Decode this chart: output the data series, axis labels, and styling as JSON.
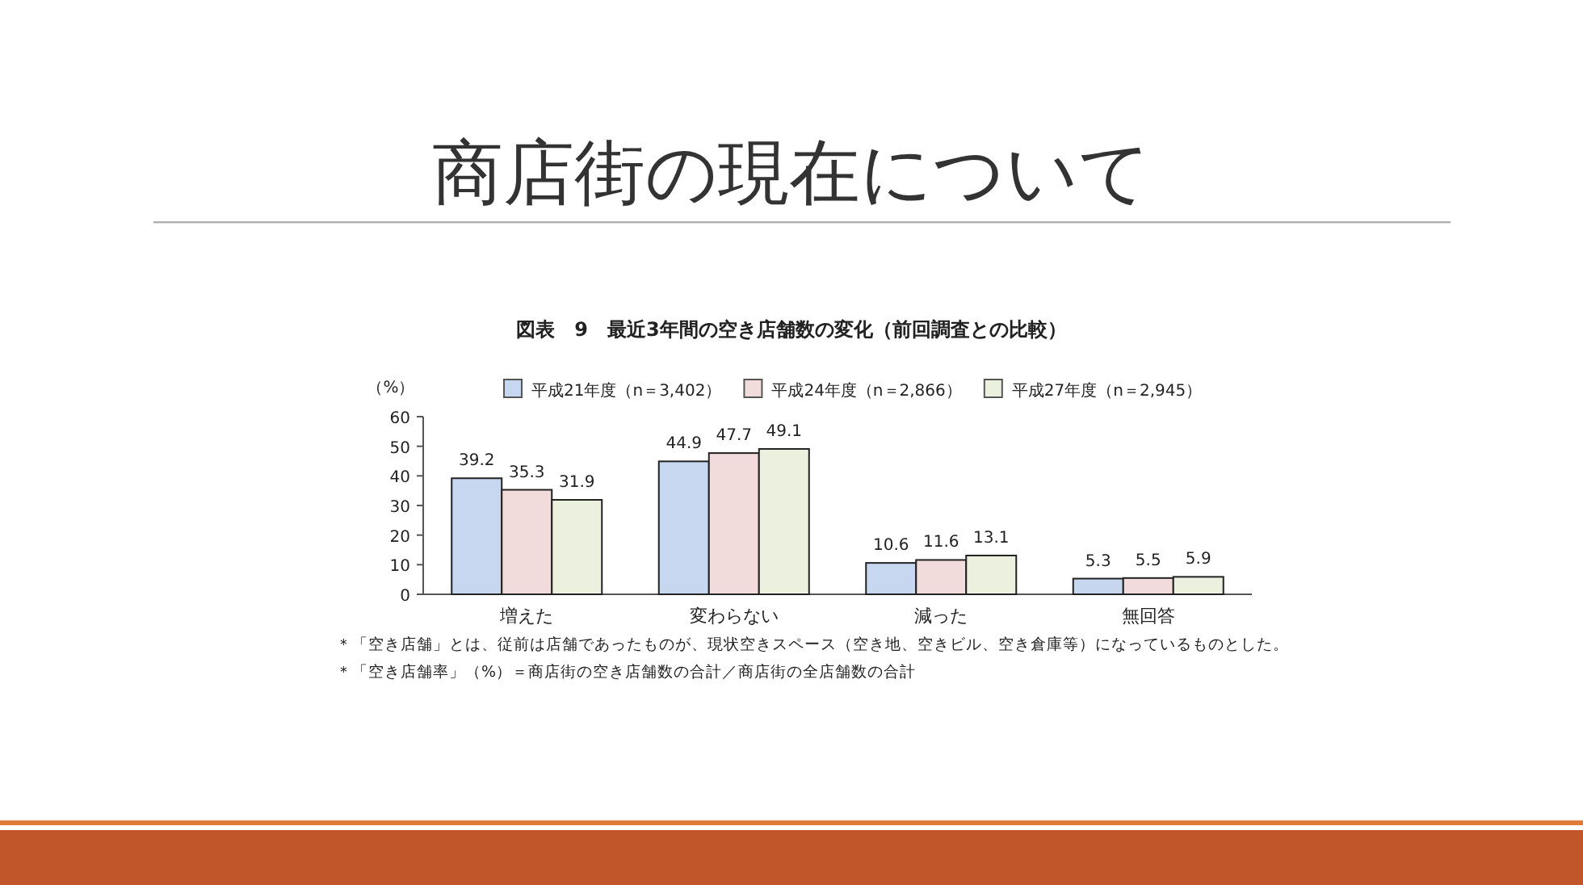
{
  "chart_data": {
    "type": "bar",
    "title": "商店街の現在について",
    "subtitle": "図表　9　最近3年間の空き店舗数の変化（前回調査との比較）",
    "ylabel": "（%）",
    "categories": [
      "増えた",
      "変わらない",
      "減った",
      "無回答"
    ],
    "series": [
      {
        "name": "平成21年度（n＝3,402）",
        "color": "#c6d7ef",
        "values": [
          39.2,
          44.9,
          10.6,
          5.3
        ]
      },
      {
        "name": "平成24年度（n＝2,866）",
        "color": "#f2dcdb",
        "values": [
          35.3,
          47.7,
          11.6,
          5.5
        ]
      },
      {
        "name": "平成27年度（n＝2,945）",
        "color": "#ebf1de",
        "values": [
          31.9,
          49.1,
          13.1,
          5.9
        ]
      }
    ],
    "ylim": [
      0,
      60
    ],
    "yticks": [
      0,
      10,
      20,
      30,
      40,
      50,
      60
    ],
    "data_labels": true,
    "legend": "top",
    "grid": false,
    "annotations": [
      "＊「空き店舗」とは、従前は店舗であったものが、現状空きスペース（空き地、空きビル、空き倉庫等）になっているものとした。",
      "＊「空き店舗率」（%）＝商店街の空き店舗数の合計／商店街の全店舗数の合計"
    ]
  }
}
